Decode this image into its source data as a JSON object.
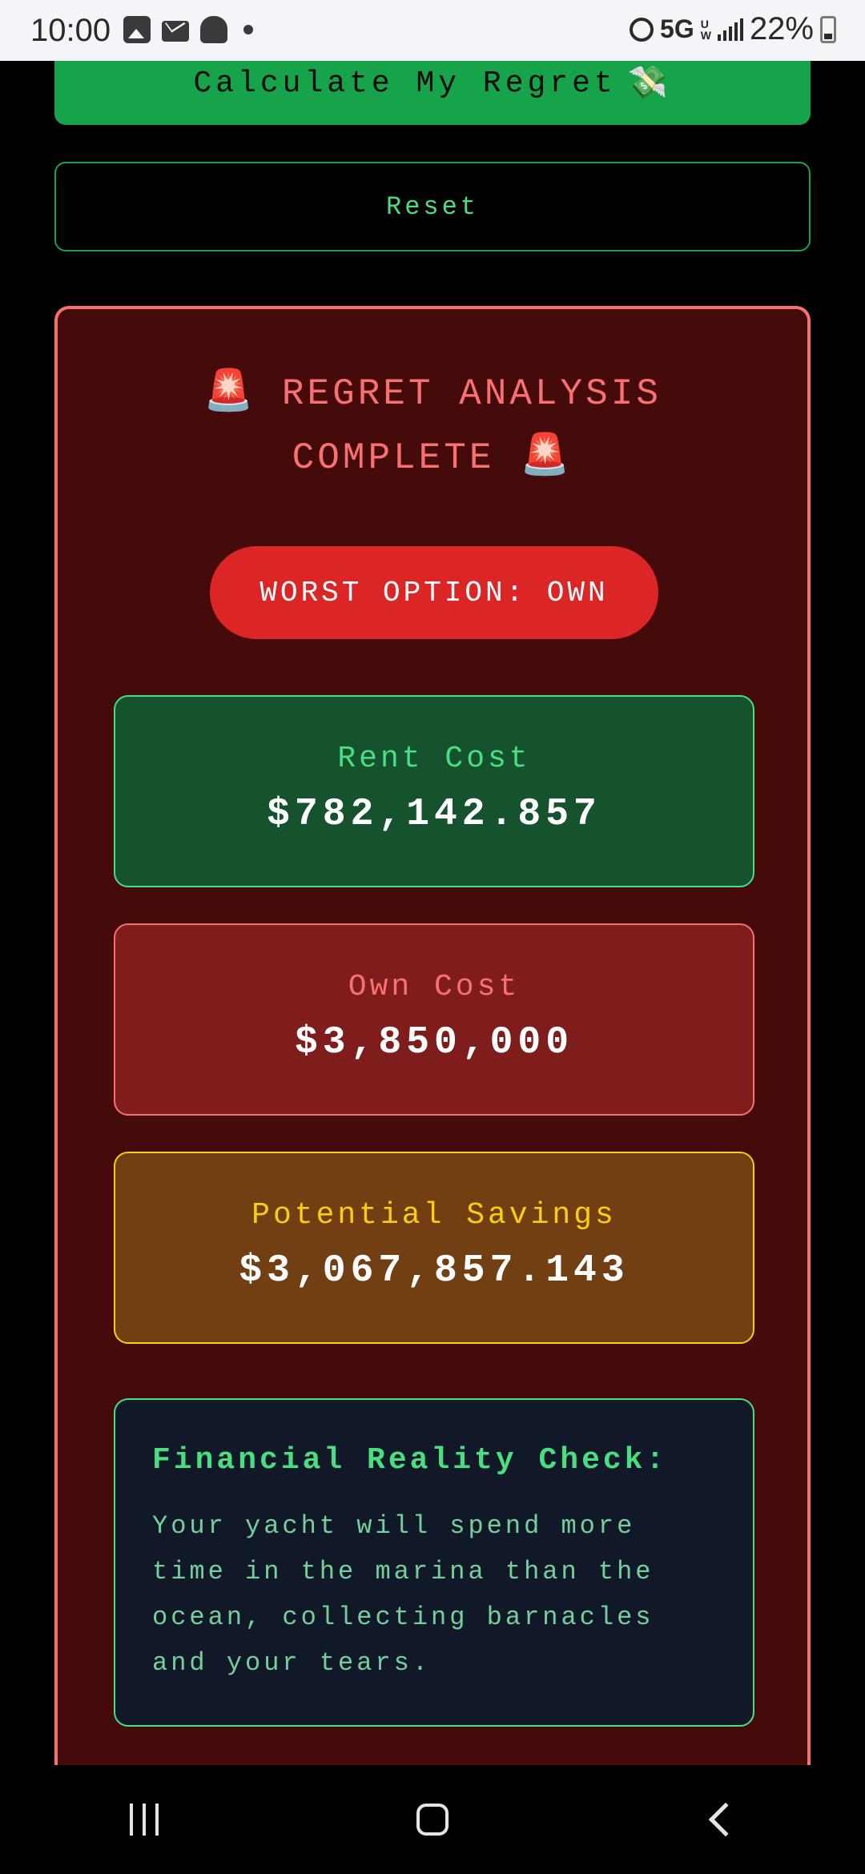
{
  "status_bar": {
    "time": "10:00",
    "network": "5G",
    "network_sub_top": "U",
    "network_sub_bottom": "W",
    "battery": "22%",
    "icons": [
      "photo-icon",
      "mail-icon",
      "snapchat-icon",
      "dot-icon",
      "alarm-icon",
      "signal-icon",
      "battery-icon"
    ]
  },
  "actions": {
    "calculate_label": "Calculate My Regret",
    "calculate_emoji": "💸",
    "reset_label": "Reset"
  },
  "results": {
    "title_line1": "REGRET ANALYSIS",
    "title_line2": "COMPLETE",
    "siren_emoji": "🚨",
    "worst_option": "WORST OPTION: OWN",
    "rent": {
      "label": "Rent Cost",
      "value": "$782,142.857"
    },
    "own": {
      "label": "Own Cost",
      "value": "$3,850,000"
    },
    "savings": {
      "label": "Potential Savings",
      "value": "$3,067,857.143"
    },
    "reality": {
      "title": "Financial Reality Check:",
      "body": "Your yacht will spend more time in the marina than the ocean, collecting barnacles and your tears."
    }
  },
  "colors": {
    "accent_green": "#16a34a",
    "panel_bg": "#450a0a",
    "panel_border": "#f87171",
    "badge_red": "#dc2626",
    "savings_yellow": "#facc15"
  },
  "nav": {
    "icons": [
      "recent-apps-icon",
      "home-icon",
      "back-icon"
    ]
  }
}
